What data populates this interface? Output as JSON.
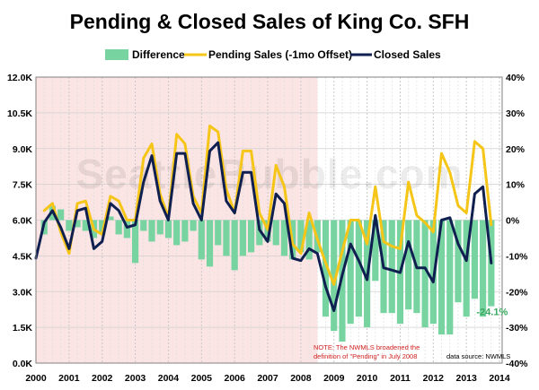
{
  "chart_data": {
    "type": "bar",
    "title": "Pending & Closed Sales of King Co. SFH",
    "legend": {
      "placement": "top",
      "entries": [
        {
          "name": "Difference",
          "color": "#77d3a0",
          "kind": "bar"
        },
        {
          "name": "Pending Sales (-1mo Offset)",
          "color": "#f5c518",
          "kind": "line"
        },
        {
          "name": "Closed Sales",
          "color": "#0e1f50",
          "kind": "line"
        }
      ]
    },
    "x_ticks": [
      "2000",
      "2001",
      "2002",
      "2003",
      "2004",
      "2005",
      "2006",
      "2007",
      "2008",
      "2009",
      "2010",
      "2011",
      "2012",
      "2013",
      "2014"
    ],
    "y_left": {
      "ticks": [
        "0.0K",
        "1.5K",
        "3.0K",
        "4.5K",
        "6.0K",
        "7.5K",
        "9.0K",
        "10.5K",
        "12.0K"
      ],
      "range": [
        0,
        12000
      ]
    },
    "y_right": {
      "ticks": [
        "-40%",
        "-30%",
        "-20%",
        "-10%",
        "0%",
        "10%",
        "20%",
        "30%",
        "40%"
      ],
      "range": [
        -40,
        40
      ]
    },
    "x_range": [
      2000,
      2014.08
    ],
    "grid": true,
    "shaded_region": {
      "from": 2000,
      "to": 2008.5,
      "color": "#fbe4e4"
    },
    "series": [
      {
        "name": "Pending Sales (-1mo Offset)",
        "type": "line",
        "color": "#f5c518",
        "axis": "left",
        "points": [
          [
            2000.25,
            6400
          ],
          [
            2000.5,
            6700
          ],
          [
            2000.75,
            5500
          ],
          [
            2001.0,
            4600
          ],
          [
            2001.25,
            6700
          ],
          [
            2001.5,
            6800
          ],
          [
            2001.75,
            5600
          ],
          [
            2002.0,
            5400
          ],
          [
            2002.25,
            7000
          ],
          [
            2002.5,
            6800
          ],
          [
            2002.75,
            6000
          ],
          [
            2003.0,
            6000
          ],
          [
            2003.25,
            8600
          ],
          [
            2003.5,
            9200
          ],
          [
            2003.75,
            7100
          ],
          [
            2004.0,
            6100
          ],
          [
            2004.25,
            9600
          ],
          [
            2004.5,
            9200
          ],
          [
            2004.75,
            7000
          ],
          [
            2005.0,
            6300
          ],
          [
            2005.25,
            9950
          ],
          [
            2005.5,
            9700
          ],
          [
            2005.75,
            7300
          ],
          [
            2006.0,
            6300
          ],
          [
            2006.25,
            8900
          ],
          [
            2006.5,
            8900
          ],
          [
            2006.75,
            6300
          ],
          [
            2007.0,
            5600
          ],
          [
            2007.25,
            8300
          ],
          [
            2007.5,
            7400
          ],
          [
            2007.75,
            5000
          ],
          [
            2008.0,
            4600
          ],
          [
            2008.25,
            6300
          ],
          [
            2008.5,
            5200
          ],
          [
            2008.75,
            4200
          ],
          [
            2009.0,
            3300
          ],
          [
            2009.25,
            4700
          ],
          [
            2009.5,
            6000
          ],
          [
            2009.75,
            6000
          ],
          [
            2010.0,
            5000
          ],
          [
            2010.25,
            7400
          ],
          [
            2010.5,
            5100
          ],
          [
            2010.75,
            4900
          ],
          [
            2011.0,
            4800
          ],
          [
            2011.25,
            7600
          ],
          [
            2011.5,
            6200
          ],
          [
            2011.75,
            5900
          ],
          [
            2012.0,
            5500
          ],
          [
            2012.25,
            8800
          ],
          [
            2012.5,
            8000
          ],
          [
            2012.75,
            6600
          ],
          [
            2013.0,
            6300
          ],
          [
            2013.25,
            9300
          ],
          [
            2013.5,
            9000
          ],
          [
            2013.75,
            5800
          ]
        ]
      },
      {
        "name": "Closed Sales",
        "type": "line",
        "color": "#0e1f50",
        "axis": "left",
        "points": [
          [
            2000.0,
            4400
          ],
          [
            2000.25,
            5900
          ],
          [
            2000.5,
            6400
          ],
          [
            2000.75,
            5700
          ],
          [
            2001.0,
            4800
          ],
          [
            2001.25,
            6400
          ],
          [
            2001.5,
            6500
          ],
          [
            2001.75,
            4800
          ],
          [
            2002.0,
            5100
          ],
          [
            2002.25,
            6700
          ],
          [
            2002.5,
            6400
          ],
          [
            2002.75,
            5700
          ],
          [
            2003.0,
            5800
          ],
          [
            2003.25,
            7600
          ],
          [
            2003.5,
            8700
          ],
          [
            2003.75,
            6800
          ],
          [
            2004.0,
            6000
          ],
          [
            2004.25,
            8800
          ],
          [
            2004.5,
            8800
          ],
          [
            2004.75,
            6700
          ],
          [
            2005.0,
            6000
          ],
          [
            2005.25,
            8900
          ],
          [
            2005.5,
            9250
          ],
          [
            2005.75,
            6800
          ],
          [
            2006.0,
            6300
          ],
          [
            2006.25,
            8000
          ],
          [
            2006.5,
            8000
          ],
          [
            2006.75,
            5600
          ],
          [
            2007.0,
            5100
          ],
          [
            2007.25,
            7100
          ],
          [
            2007.5,
            6700
          ],
          [
            2007.75,
            4400
          ],
          [
            2008.0,
            4300
          ],
          [
            2008.25,
            4800
          ],
          [
            2008.5,
            4600
          ],
          [
            2008.75,
            3200
          ],
          [
            2009.0,
            2200
          ],
          [
            2009.25,
            3700
          ],
          [
            2009.5,
            5000
          ],
          [
            2009.75,
            4300
          ],
          [
            2010.0,
            3500
          ],
          [
            2010.25,
            6200
          ],
          [
            2010.5,
            4000
          ],
          [
            2010.75,
            3900
          ],
          [
            2011.0,
            3800
          ],
          [
            2011.25,
            5100
          ],
          [
            2011.5,
            4000
          ],
          [
            2011.75,
            4000
          ],
          [
            2012.0,
            3400
          ],
          [
            2012.25,
            6000
          ],
          [
            2012.5,
            6100
          ],
          [
            2012.75,
            5000
          ],
          [
            2013.0,
            4300
          ],
          [
            2013.25,
            7100
          ],
          [
            2013.5,
            7400
          ],
          [
            2013.75,
            4200
          ]
        ]
      },
      {
        "name": "Difference",
        "type": "bar",
        "color": "#77d3a0",
        "axis": "right",
        "points": [
          [
            2000.25,
            -4
          ],
          [
            2000.5,
            4
          ],
          [
            2000.75,
            3
          ],
          [
            2001.0,
            -3
          ],
          [
            2001.25,
            -2
          ],
          [
            2001.5,
            -3
          ],
          [
            2001.75,
            -5
          ],
          [
            2002.0,
            -4
          ],
          [
            2002.25,
            1
          ],
          [
            2002.5,
            -4
          ],
          [
            2002.75,
            -5
          ],
          [
            2003.0,
            -12
          ],
          [
            2003.25,
            -3
          ],
          [
            2003.5,
            -6
          ],
          [
            2003.75,
            -4
          ],
          [
            2004.0,
            -5
          ],
          [
            2004.25,
            -7
          ],
          [
            2004.5,
            -6
          ],
          [
            2004.75,
            -3
          ],
          [
            2005.0,
            -11
          ],
          [
            2005.25,
            -13
          ],
          [
            2005.5,
            -7
          ],
          [
            2005.75,
            -10
          ],
          [
            2006.0,
            -14
          ],
          [
            2006.25,
            -10
          ],
          [
            2006.5,
            -9
          ],
          [
            2006.75,
            -7
          ],
          [
            2007.0,
            -6
          ],
          [
            2007.25,
            -7
          ],
          [
            2007.5,
            -10
          ],
          [
            2007.75,
            -11
          ],
          [
            2008.0,
            -9
          ],
          [
            2008.25,
            -11
          ],
          [
            2008.5,
            -9
          ],
          [
            2008.75,
            -27
          ],
          [
            2009.0,
            -31
          ],
          [
            2009.25,
            -34
          ],
          [
            2009.5,
            -29
          ],
          [
            2009.75,
            -27
          ],
          [
            2010.0,
            -30
          ],
          [
            2010.25,
            -17
          ],
          [
            2010.5,
            -26
          ],
          [
            2010.75,
            -26
          ],
          [
            2011.0,
            -29
          ],
          [
            2011.25,
            -25
          ],
          [
            2011.5,
            -26
          ],
          [
            2011.75,
            -30
          ],
          [
            2012.0,
            -29
          ],
          [
            2012.25,
            -32
          ],
          [
            2012.5,
            -32
          ],
          [
            2012.75,
            -23
          ],
          [
            2013.0,
            -27
          ],
          [
            2013.25,
            -22
          ],
          [
            2013.5,
            -27
          ],
          [
            2013.75,
            -24.1
          ]
        ]
      }
    ],
    "annotations": {
      "watermark": "SeattleBubble.com",
      "note_line1": "NOTE: The NWMLS broadened the",
      "note_line2": "definition of \"Pending\" in July 2008",
      "source": "data source: NWMLS",
      "last_difference": "-24.1%"
    }
  }
}
